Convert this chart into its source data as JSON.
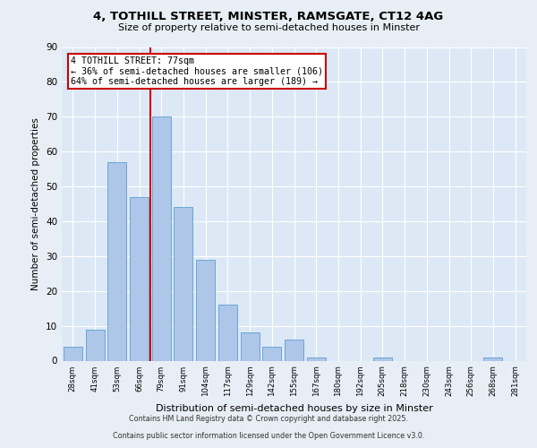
{
  "title1": "4, TOTHILL STREET, MINSTER, RAMSGATE, CT12 4AG",
  "title2": "Size of property relative to semi-detached houses in Minster",
  "xlabel": "Distribution of semi-detached houses by size in Minster",
  "ylabel": "Number of semi-detached properties",
  "categories": [
    "28sqm",
    "41sqm",
    "53sqm",
    "66sqm",
    "79sqm",
    "91sqm",
    "104sqm",
    "117sqm",
    "129sqm",
    "142sqm",
    "155sqm",
    "167sqm",
    "180sqm",
    "192sqm",
    "205sqm",
    "218sqm",
    "230sqm",
    "243sqm",
    "256sqm",
    "268sqm",
    "281sqm"
  ],
  "values": [
    4,
    9,
    57,
    47,
    70,
    44,
    29,
    16,
    8,
    4,
    6,
    1,
    0,
    0,
    1,
    0,
    0,
    0,
    0,
    1,
    0
  ],
  "bar_color": "#aec6e8",
  "bar_edge_color": "#5a9fd4",
  "property_label": "4 TOTHILL STREET: 77sqm",
  "annotation_line1": "← 36% of semi-detached houses are smaller (106)",
  "annotation_line2": "64% of semi-detached houses are larger (189) →",
  "annotation_box_color": "#ffffff",
  "annotation_box_edge": "#cc0000",
  "marker_line_color": "#cc0000",
  "bg_color": "#e8eef5",
  "plot_bg_color": "#dce8f5",
  "footer1": "Contains HM Land Registry data © Crown copyright and database right 2025.",
  "footer2": "Contains public sector information licensed under the Open Government Licence v3.0.",
  "ylim": [
    0,
    90
  ],
  "yticks": [
    0,
    10,
    20,
    30,
    40,
    50,
    60,
    70,
    80,
    90
  ]
}
